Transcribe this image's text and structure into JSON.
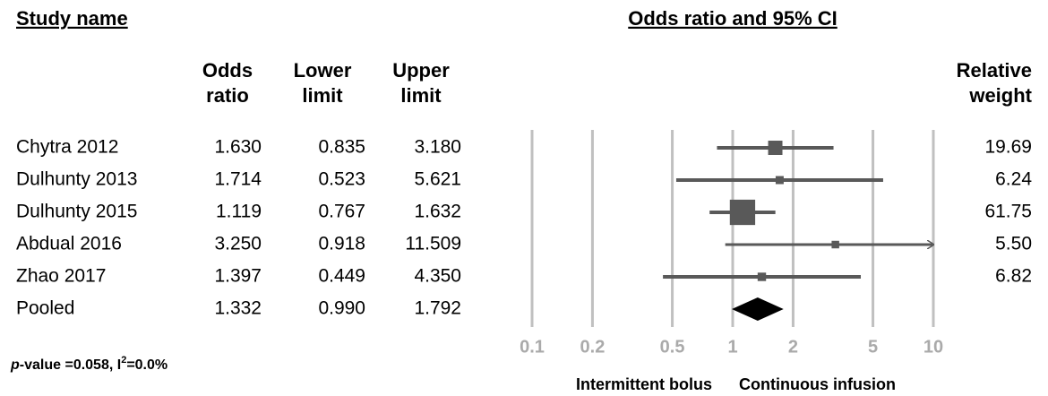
{
  "chart_data": {
    "type": "forest",
    "title": "Odds ratio and 95% CI",
    "study_header": "Study name",
    "categories": [
      "Chytra 2012",
      "Dulhunty 2013",
      "Dulhunty 2015",
      "Abdual 2016",
      "Zhao 2017",
      "Pooled"
    ],
    "odds_ratio": {
      "header": [
        "Odds",
        "ratio"
      ],
      "values": [
        1.63,
        1.714,
        1.119,
        3.25,
        1.397,
        1.332
      ],
      "value_labels": [
        "1.630",
        "1.714",
        "1.119",
        "3.250",
        "1.397",
        "1.332"
      ]
    },
    "lower_limit": {
      "header": [
        "Lower",
        "limit"
      ],
      "values": [
        0.835,
        0.523,
        0.767,
        0.918,
        0.449,
        0.99
      ],
      "value_labels": [
        "0.835",
        "0.523",
        "0.767",
        "0.918",
        "0.449",
        "0.990"
      ]
    },
    "upper_limit": {
      "header": [
        "Upper",
        "limit"
      ],
      "values": [
        3.18,
        5.621,
        1.632,
        11.509,
        4.35,
        1.792
      ],
      "value_labels": [
        "3.180",
        "5.621",
        "1.632",
        "11.509",
        "4.350",
        "1.792"
      ]
    },
    "relative_weight": {
      "header": [
        "Relative",
        "weight"
      ],
      "values": [
        19.69,
        6.24,
        61.75,
        5.5,
        6.82,
        null
      ],
      "value_labels": [
        "19.69",
        "6.24",
        "61.75",
        "5.50",
        "6.82",
        null
      ]
    },
    "pooled_index": 5,
    "xscale": "log",
    "xlim": [
      0.1,
      10
    ],
    "xticks": [
      0.1,
      0.2,
      0.5,
      1,
      2,
      5,
      10
    ],
    "grid": true,
    "left_label": "Intermittent bolus",
    "right_label": "Continuous infusion",
    "footnote": [
      "p",
      "-value =0.058, I",
      "2",
      "=0.0%"
    ],
    "marker_color": "#595959",
    "pooled_color": "#000000",
    "grid_color": "#c0c0c0"
  }
}
